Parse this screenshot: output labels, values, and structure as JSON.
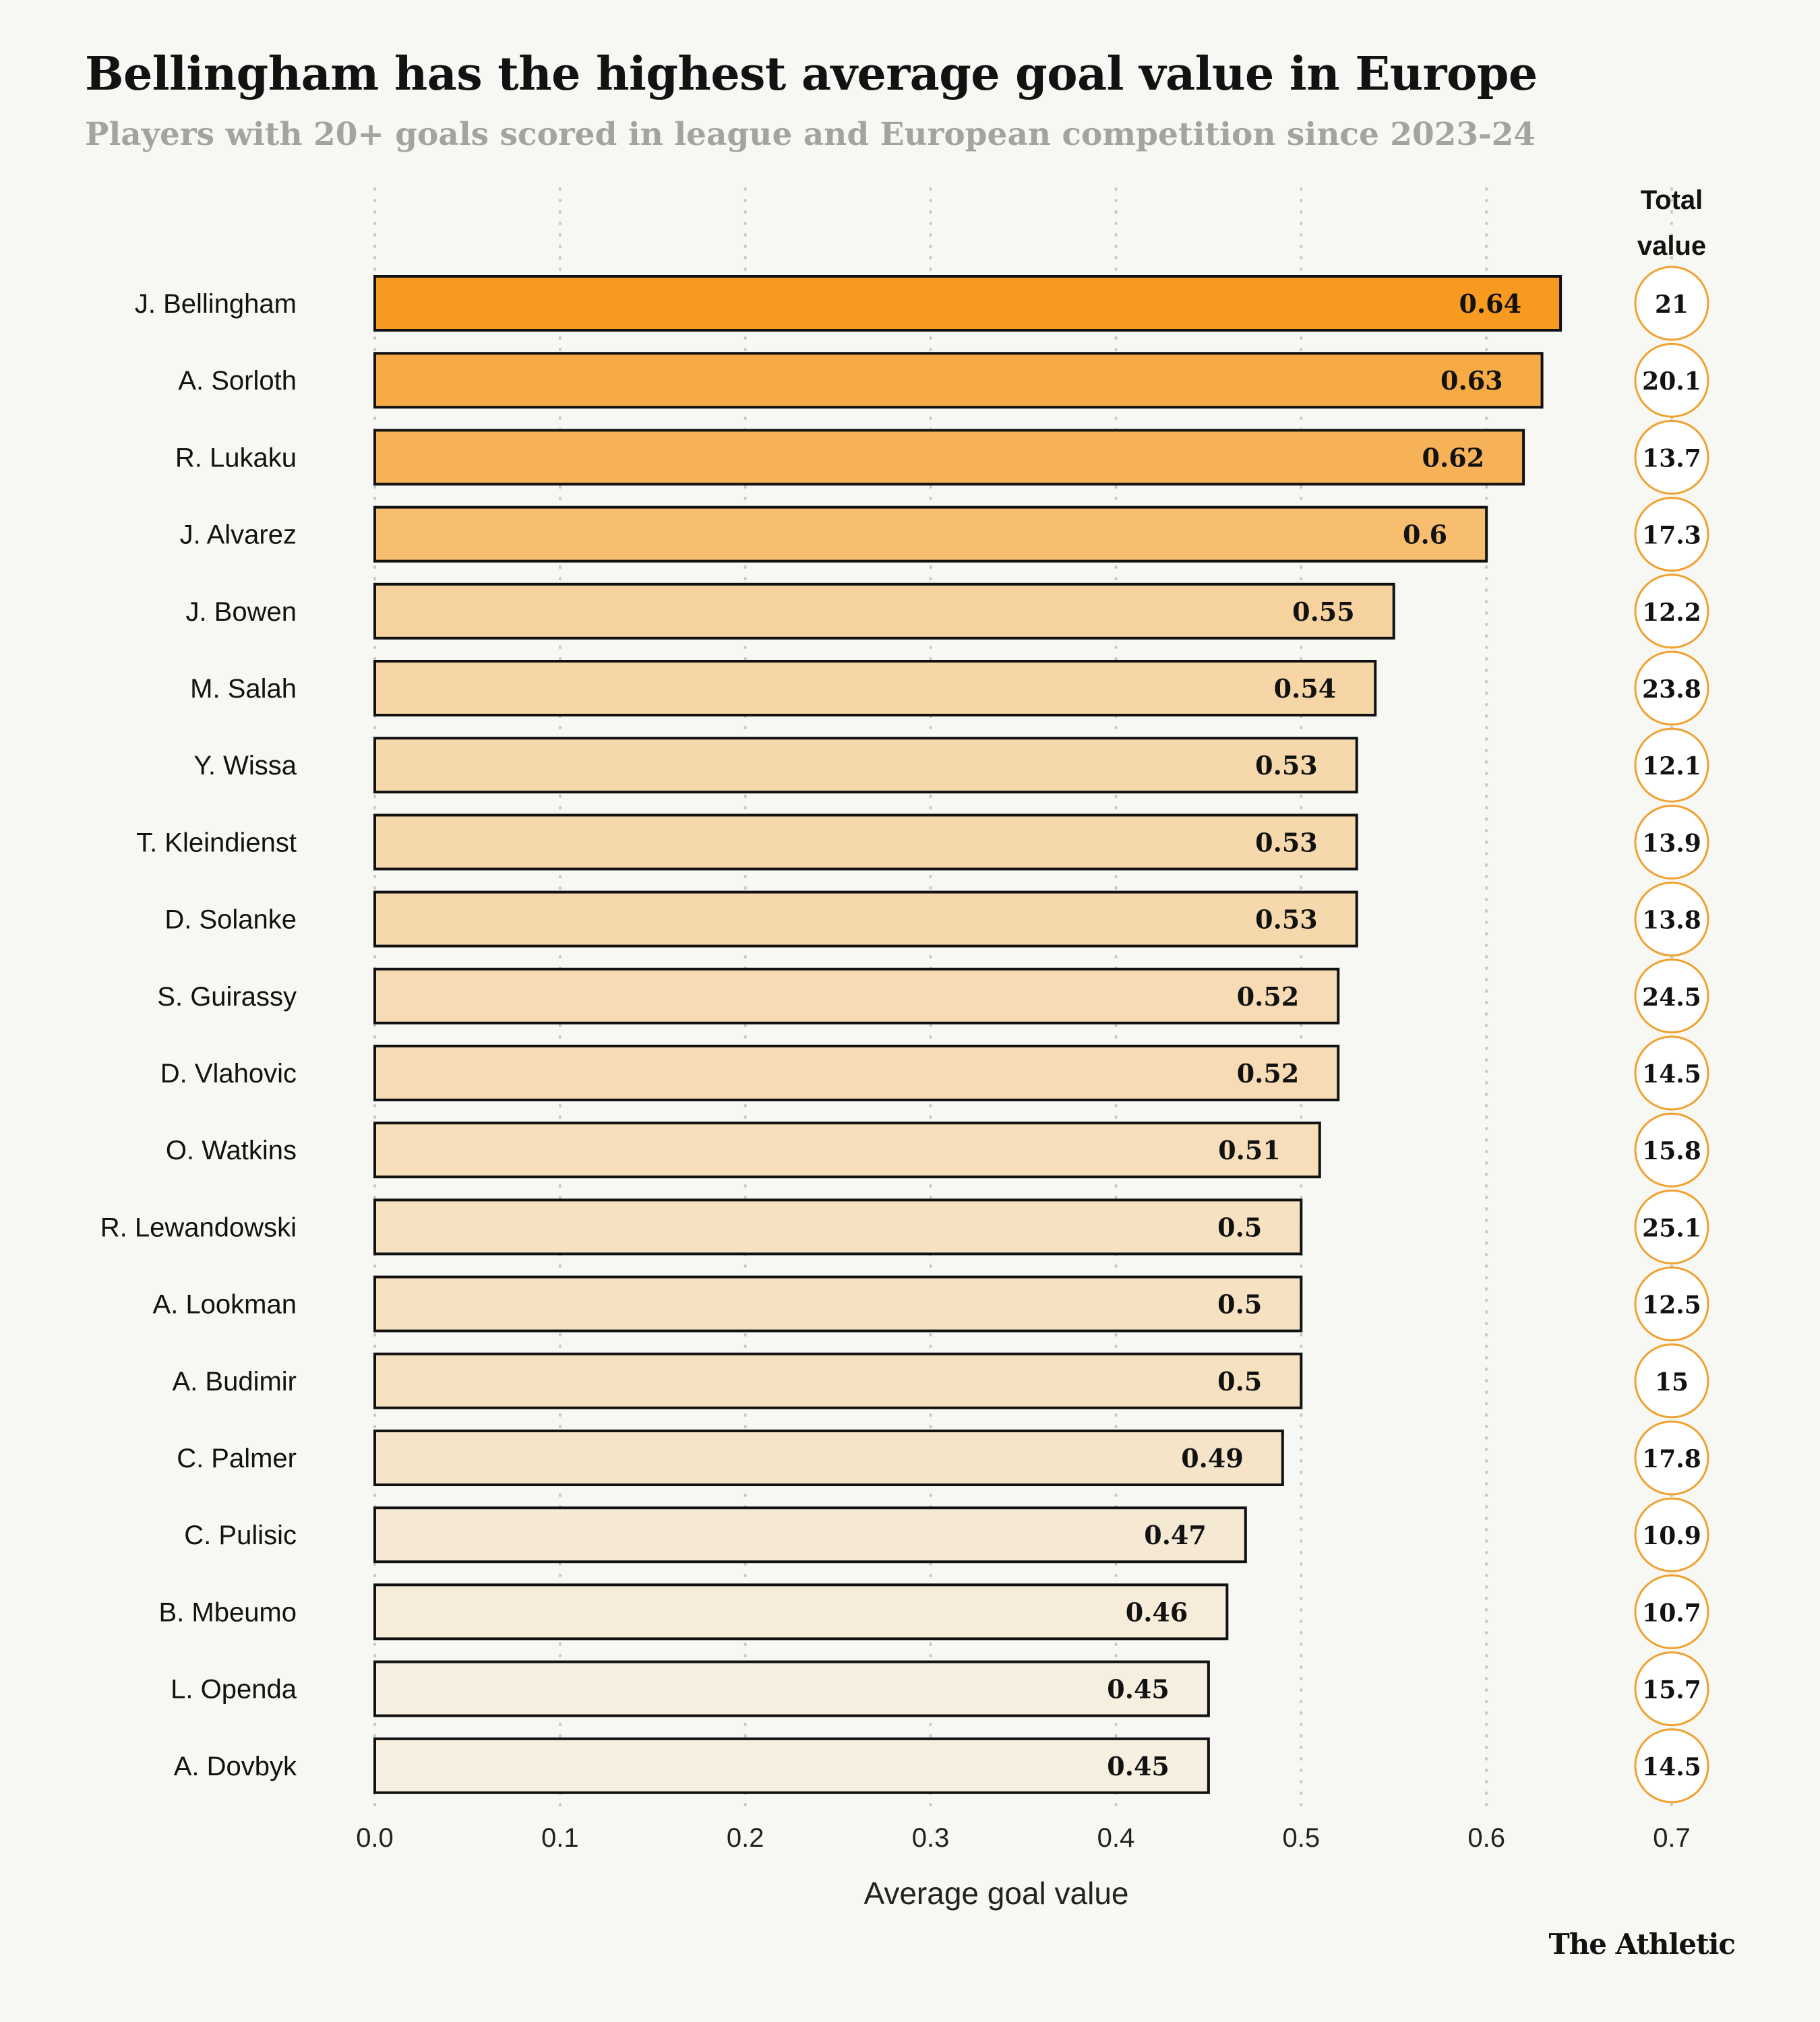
{
  "header": {
    "title": "Bellingham has the highest average goal value in Europe",
    "subtitle": "Players with 20+ goals scored in league and European competition since 2023-24"
  },
  "footer": {
    "brand": "The Athletic"
  },
  "colors": {
    "background": "#f7f7f3",
    "bar_dark": "#f79a1f",
    "bar_light": "#f6eedf",
    "circle_stroke": "#f0a130",
    "gridline": "#c9c9c4"
  },
  "chart_data": {
    "type": "bar",
    "orientation": "horizontal",
    "title": "Bellingham has the highest average goal value in Europe",
    "subtitle": "Players with 20+ goals scored in league and European competition since 2023-24",
    "xlabel": "Average goal value",
    "ylabel": "",
    "xlim": [
      0,
      0.7
    ],
    "x_ticks": [
      "0.0",
      "0.1",
      "0.2",
      "0.3",
      "0.4",
      "0.5",
      "0.6",
      "0.7"
    ],
    "grid": "vertical dotted",
    "total_column_header": [
      "Total",
      "value"
    ],
    "categories": [
      "J. Bellingham",
      "A. Sorloth",
      "R. Lukaku",
      "J. Alvarez",
      "J. Bowen",
      "M. Salah",
      "Y. Wissa",
      "T. Kleindienst",
      "D. Solanke",
      "S. Guirassy",
      "D. Vlahovic",
      "O. Watkins",
      "R. Lewandowski",
      "A. Lookman",
      "A. Budimir",
      "C. Palmer",
      "C. Pulisic",
      "B. Mbeumo",
      "L. Openda",
      "A. Dovbyk"
    ],
    "values": [
      0.64,
      0.63,
      0.62,
      0.6,
      0.55,
      0.54,
      0.53,
      0.53,
      0.53,
      0.52,
      0.52,
      0.51,
      0.5,
      0.5,
      0.5,
      0.49,
      0.47,
      0.46,
      0.45,
      0.45
    ],
    "value_labels": [
      "0.64",
      "0.63",
      "0.62",
      "0.6",
      "0.55",
      "0.54",
      "0.53",
      "0.53",
      "0.53",
      "0.52",
      "0.52",
      "0.51",
      "0.5",
      "0.5",
      "0.5",
      "0.49",
      "0.47",
      "0.46",
      "0.45",
      "0.45"
    ],
    "total_values": [
      "21",
      "20.1",
      "13.7",
      "17.3",
      "12.2",
      "23.8",
      "12.1",
      "13.9",
      "13.8",
      "24.5",
      "14.5",
      "15.8",
      "25.1",
      "12.5",
      "15",
      "17.8",
      "10.9",
      "10.7",
      "15.7",
      "14.5"
    ]
  }
}
